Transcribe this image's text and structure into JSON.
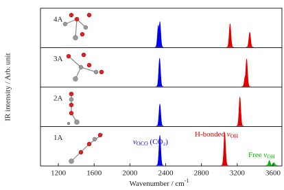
{
  "chart_data": {
    "type": "spectrum",
    "x_label": {
      "text": "Wavenumber / cm",
      "sup": "-1"
    },
    "y_label": "IR intensity / Arb. unit",
    "xlim": [
      1000,
      3700
    ],
    "xticks": [
      1200,
      1600,
      2000,
      2400,
      2800,
      3200,
      3600
    ],
    "ylim": [
      0,
      1
    ],
    "panels": [
      {
        "label": "4A",
        "peaks": [
          {
            "x": 2318,
            "height": 0.62,
            "color": "#0000ee"
          },
          {
            "x": 2335,
            "height": 0.72,
            "color": "#0000ee"
          },
          {
            "x": 3120,
            "height": 0.66,
            "color": "#e00000"
          },
          {
            "x": 3340,
            "height": 0.42,
            "color": "#e00000"
          }
        ]
      },
      {
        "label": "3A",
        "peaks": [
          {
            "x": 2332,
            "height": 0.8,
            "color": "#0000ee"
          },
          {
            "x": 3290,
            "height": 0.3,
            "color": "#e00000"
          },
          {
            "x": 3305,
            "height": 0.78,
            "color": "#e00000"
          }
        ]
      },
      {
        "label": "2A",
        "peaks": [
          {
            "x": 2335,
            "height": 0.62,
            "color": "#0000ee"
          },
          {
            "x": 3230,
            "height": 0.82,
            "color": "#e00000"
          }
        ]
      },
      {
        "label": "1A",
        "peaks": [
          {
            "x": 2335,
            "height": 0.85,
            "color": "#0000ee"
          },
          {
            "x": 3060,
            "height": 0.92,
            "color": "#e00000"
          },
          {
            "x": 3560,
            "height": 0.14,
            "color": "#00bb00"
          },
          {
            "x": 3610,
            "height": 0.08,
            "color": "#00bb00"
          }
        ]
      }
    ],
    "annotations": [
      {
        "symbol": "ν",
        "sub": "OCO",
        "text": " (CO₂)",
        "color": "#0000ee"
      },
      {
        "text": "H-bonded ",
        "symbol": "ν",
        "sub": "OH",
        "color": "#e00000"
      },
      {
        "text": "Free ",
        "symbol": "ν",
        "sub": "OH",
        "color": "#00bb00"
      }
    ]
  }
}
